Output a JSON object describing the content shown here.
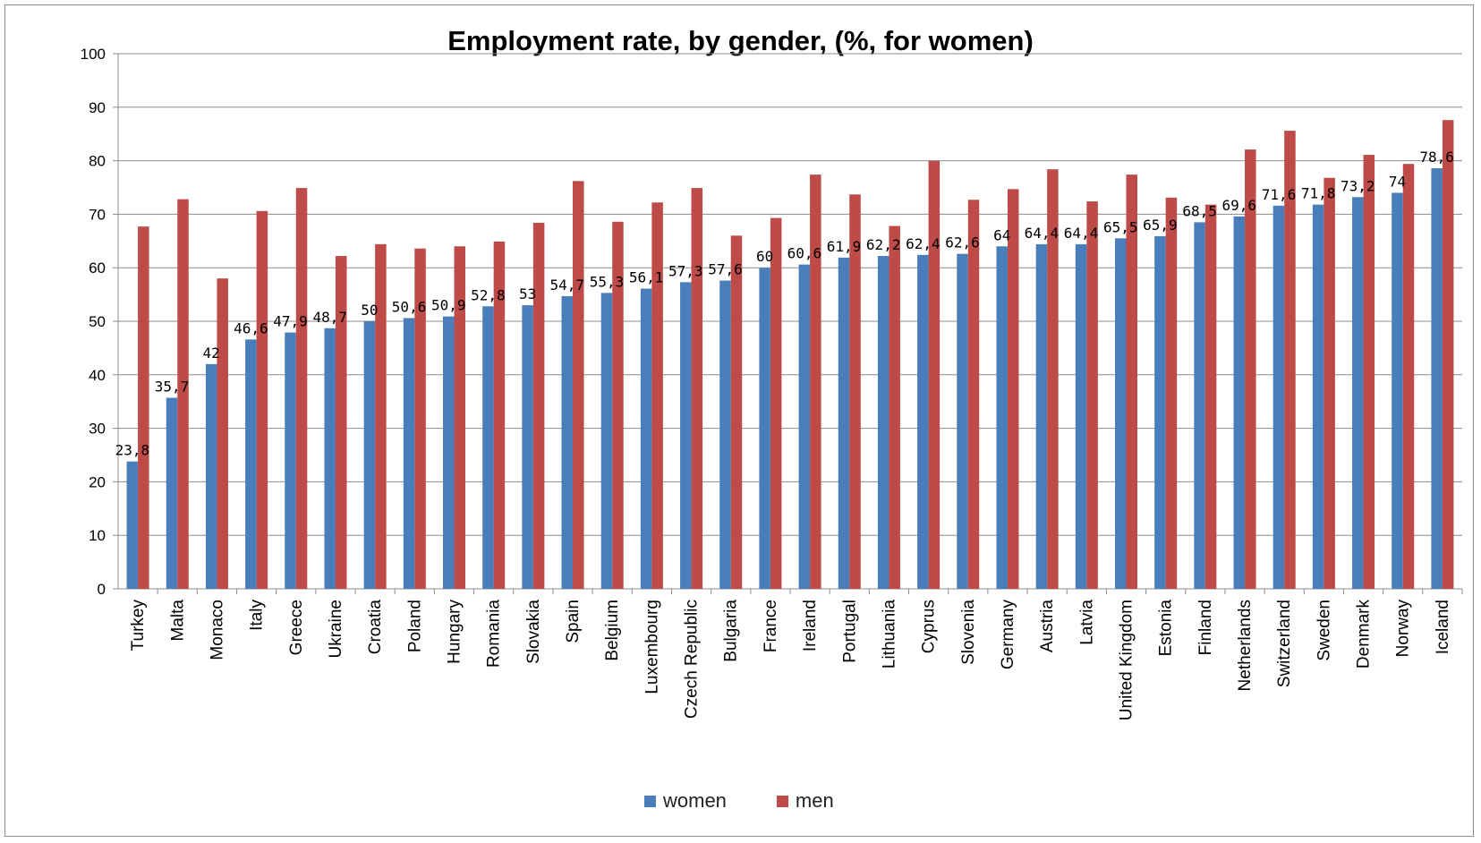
{
  "chart_data": {
    "type": "bar",
    "title": "Employment rate, by gender, (%, for women)",
    "xlabel": "",
    "ylabel": "",
    "ylim": [
      0,
      100
    ],
    "yticks": [
      0,
      10,
      20,
      30,
      40,
      50,
      60,
      70,
      80,
      90,
      100
    ],
    "grid": true,
    "legend_placement": "bottom",
    "categories": [
      "Turkey",
      "Malta",
      "Monaco",
      "Italy",
      "Greece",
      "Ukraine",
      "Croatia",
      "Poland",
      "Hungary",
      "Romania",
      "Slovakia",
      "Spain",
      "Belgium",
      "Luxembourg",
      "Czech Republic",
      "Bulgaria",
      "France",
      "Ireland",
      "Portugal",
      "Lithuania",
      "Cyprus",
      "Slovenia",
      "Germany",
      "Austria",
      "Latvia",
      "United Kingdom",
      "Estonia",
      "Finland",
      "Netherlands",
      "Switzerland",
      "Sweden",
      "Denmark",
      "Norway",
      "Iceland"
    ],
    "series": [
      {
        "name": "women",
        "color": "#4a7ebb",
        "values": [
          23.8,
          35.7,
          42,
          46.6,
          47.9,
          48.7,
          50,
          50.6,
          50.9,
          52.8,
          53,
          54.7,
          55.3,
          56.1,
          57.3,
          57.6,
          60,
          60.6,
          61.9,
          62.2,
          62.4,
          62.6,
          64,
          64.4,
          64.4,
          65.5,
          65.9,
          68.5,
          69.6,
          71.6,
          71.8,
          73.2,
          74,
          78.6
        ],
        "labels": [
          "23,8",
          "35,7",
          "42",
          "46,6",
          "47,9",
          "48,7",
          "50",
          "50,6",
          "50,9",
          "52,8",
          "53",
          "54,7",
          "55,3",
          "56,1",
          "57,3",
          "57,6",
          "60",
          "60,6",
          "61,9",
          "62,2",
          "62,4",
          "62,6",
          "64",
          "64,4",
          "64,4",
          "65,5",
          "65,9",
          "68,5",
          "69,6",
          "71,6",
          "71,8",
          "73,2",
          "74",
          "78,6"
        ]
      },
      {
        "name": "men",
        "color": "#be4b48",
        "values": [
          67.7,
          72.8,
          58,
          70.6,
          74.9,
          62.2,
          64.4,
          63.6,
          64,
          64.9,
          68.4,
          76.2,
          68.6,
          72.2,
          74.9,
          66,
          69.3,
          77.4,
          73.7,
          67.8,
          80,
          72.7,
          74.7,
          78.4,
          72.4,
          77.4,
          73.1,
          71.8,
          82.1,
          85.6,
          76.8,
          81.1,
          79.4,
          87.6
        ]
      }
    ]
  }
}
